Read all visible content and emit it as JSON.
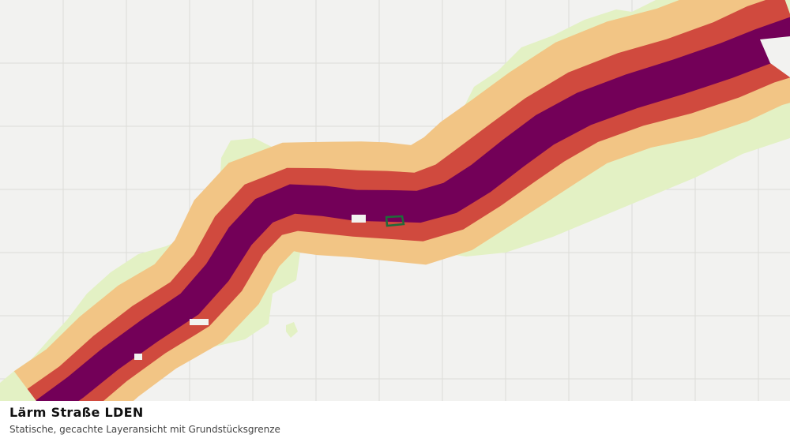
{
  "caption": {
    "title": "Lärm Straße LDEN",
    "subtitle": "Statische, gecachte Layeransicht mit Grundstücksgrenze"
  },
  "map": {
    "background_color": "#f2f2f0",
    "grid_color": "#dcdcd8",
    "noise_band_colors": {
      "outer": "#e3f1c4",
      "mid": "#f2c585",
      "inner": "#d04a3e",
      "core": "#730058"
    },
    "parcel_outline_color": "#1f6b3a"
  }
}
